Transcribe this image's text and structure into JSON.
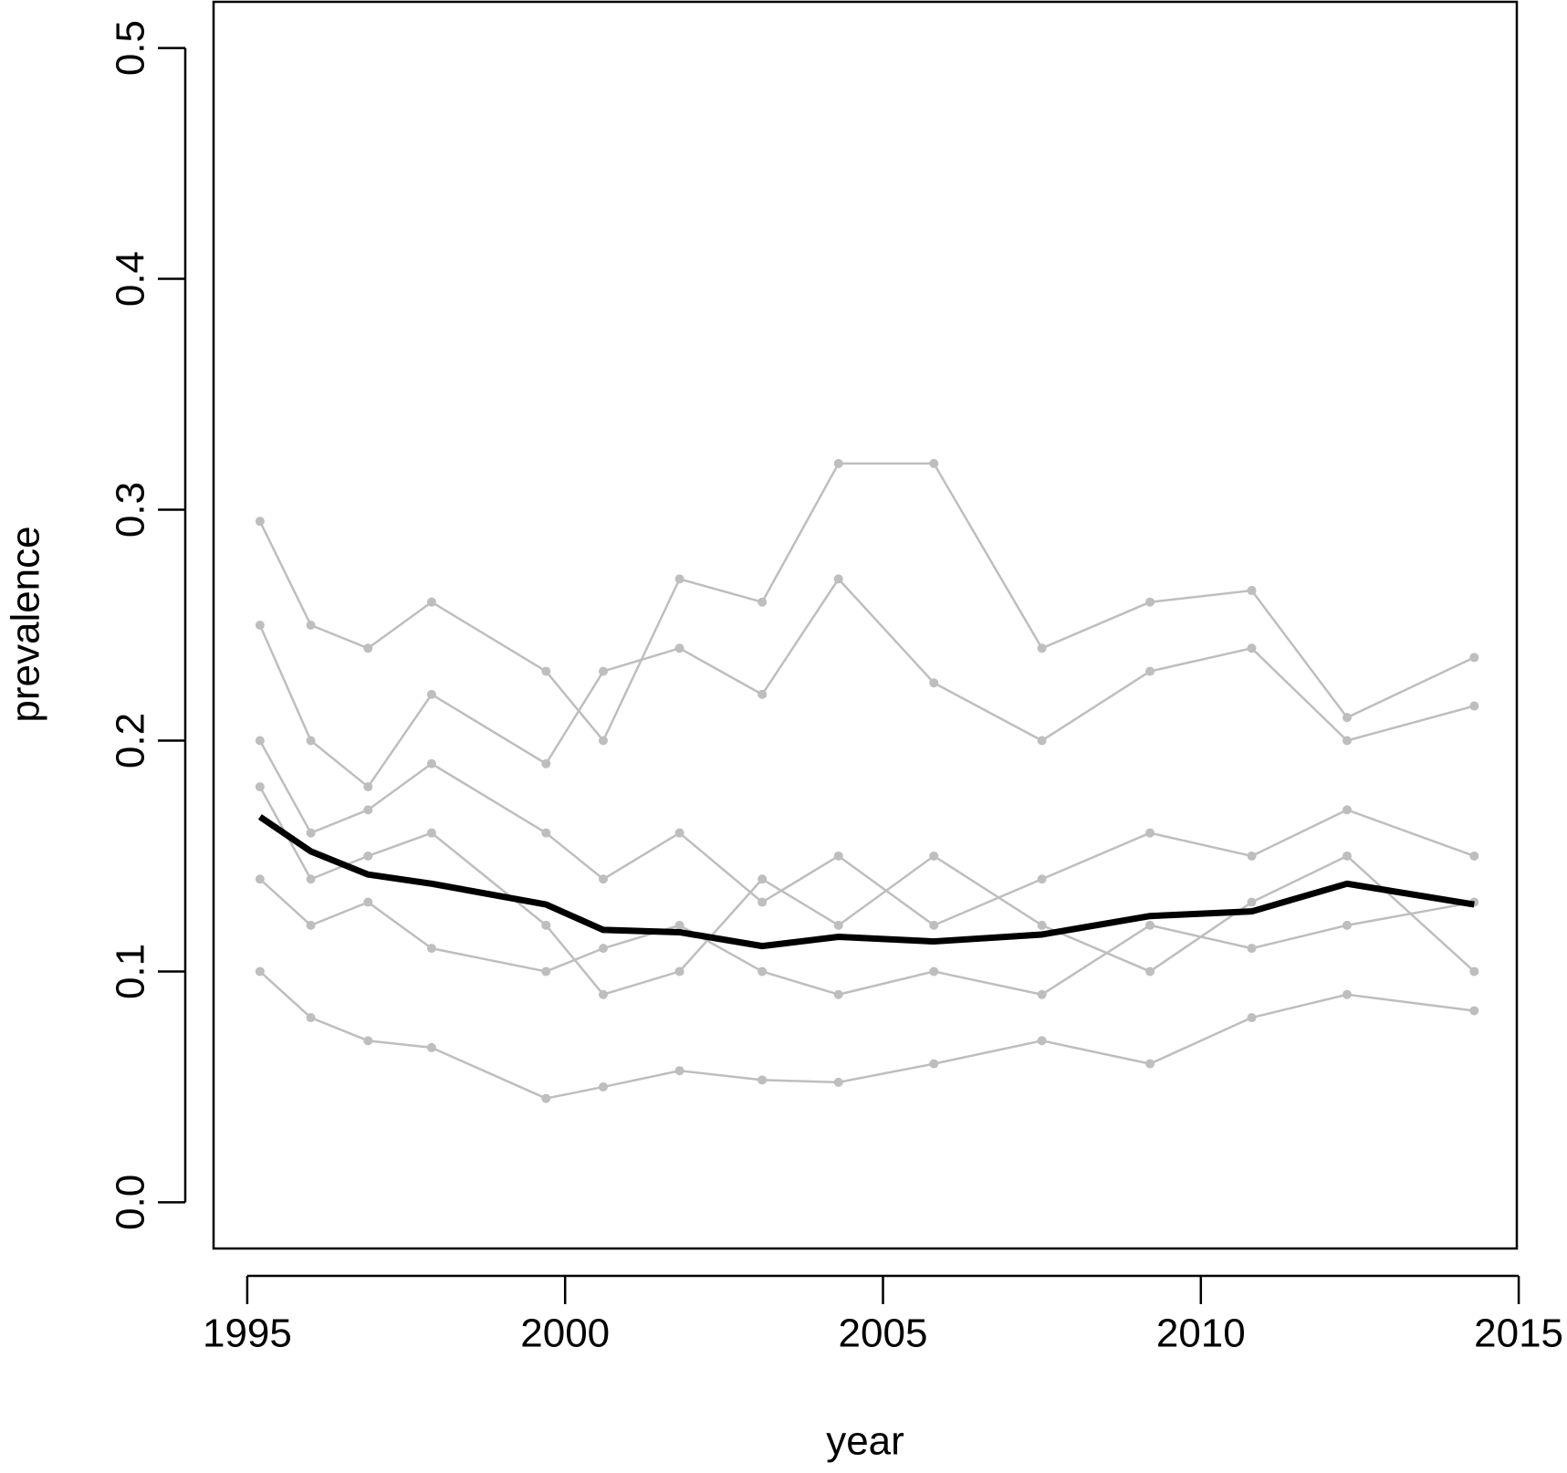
{
  "chart_data": {
    "type": "line",
    "x_label": "year",
    "y_label": "prevalence",
    "x": [
      1995.2,
      1996.0,
      1996.9,
      1997.9,
      1999.7,
      2000.6,
      2001.8,
      2003.1,
      2004.3,
      2005.8,
      2007.5,
      2009.2,
      2010.8,
      2012.3,
      2014.3
    ],
    "series": [
      {
        "color": "#bebebe",
        "values": [
          0.295,
          0.25,
          0.24,
          0.26,
          0.23,
          0.2,
          0.27,
          0.26,
          0.32,
          0.32,
          0.24,
          0.26,
          0.265,
          0.21,
          0.236
        ]
      },
      {
        "color": "#bebebe",
        "values": [
          0.25,
          0.2,
          0.18,
          0.22,
          0.19,
          0.23,
          0.24,
          0.22,
          0.27,
          0.225,
          0.2,
          0.23,
          0.24,
          0.2,
          0.215
        ]
      },
      {
        "color": "#bebebe",
        "values": [
          0.2,
          0.16,
          0.17,
          0.19,
          0.16,
          0.14,
          0.16,
          0.13,
          0.15,
          0.12,
          0.14,
          0.16,
          0.15,
          0.17,
          0.15
        ]
      },
      {
        "color": "#bebebe",
        "values": [
          0.14,
          0.12,
          0.13,
          0.11,
          0.1,
          0.11,
          0.12,
          0.1,
          0.09,
          0.1,
          0.09,
          0.12,
          0.11,
          0.12,
          0.13
        ]
      },
      {
        "color": "#bebebe",
        "values": [
          0.1,
          0.08,
          0.07,
          0.067,
          0.045,
          0.05,
          0.057,
          0.053,
          0.052,
          0.06,
          0.07,
          0.06,
          0.08,
          0.09,
          0.083
        ]
      },
      {
        "color": "#bebebe",
        "values": [
          0.18,
          0.14,
          0.15,
          0.16,
          0.12,
          0.09,
          0.1,
          0.14,
          0.12,
          0.15,
          0.12,
          0.1,
          0.13,
          0.15,
          0.1
        ]
      },
      {
        "color": "#000000",
        "values": [
          0.167,
          0.152,
          0.142,
          0.138,
          0.129,
          0.118,
          0.117,
          0.111,
          0.115,
          0.113,
          0.116,
          0.124,
          0.126,
          0.138,
          0.129
        ]
      }
    ],
    "xlim": [
      1994.47,
      2014.97
    ],
    "ylim": [
      -0.02,
      0.52
    ],
    "xticks": [
      1995,
      2000,
      2005,
      2010,
      2015
    ],
    "yticks": [
      {
        "value": 0,
        "label": "0.0"
      },
      0.1,
      0.2,
      0.3,
      0.4,
      0.5
    ]
  }
}
